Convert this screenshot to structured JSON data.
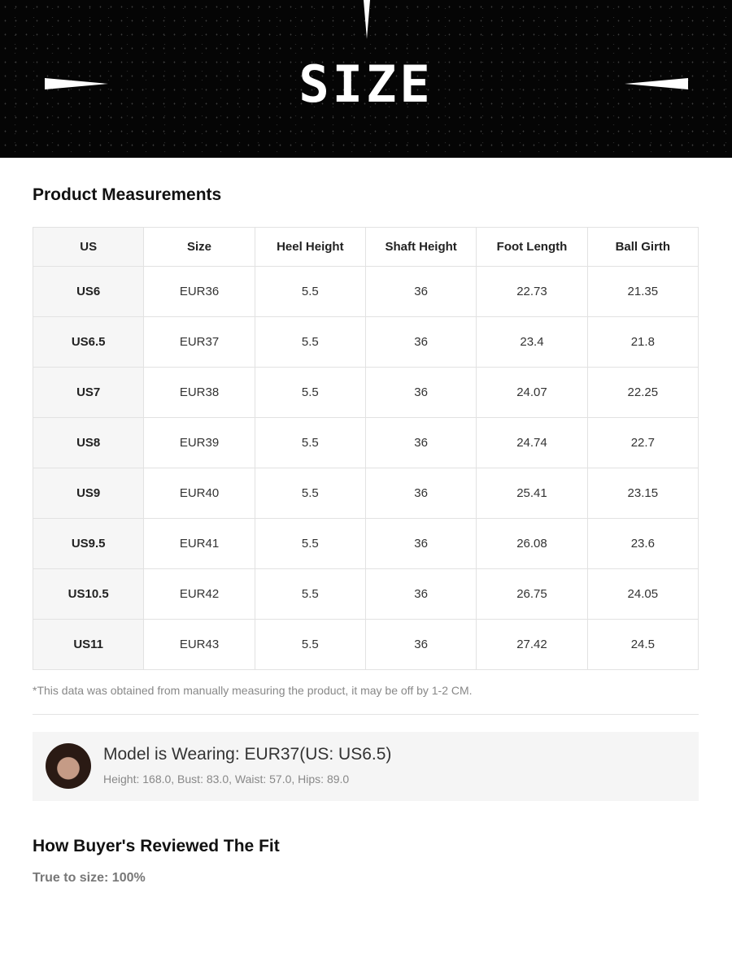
{
  "banner": {
    "title": "SIZE"
  },
  "measurements": {
    "title": "Product Measurements",
    "headers": [
      "US",
      "Size",
      "Heel Height",
      "Shaft Height",
      "Foot Length",
      "Ball Girth"
    ],
    "rows": [
      [
        "US6",
        "EUR36",
        "5.5",
        "36",
        "22.73",
        "21.35"
      ],
      [
        "US6.5",
        "EUR37",
        "5.5",
        "36",
        "23.4",
        "21.8"
      ],
      [
        "US7",
        "EUR38",
        "5.5",
        "36",
        "24.07",
        "22.25"
      ],
      [
        "US8",
        "EUR39",
        "5.5",
        "36",
        "24.74",
        "22.7"
      ],
      [
        "US9",
        "EUR40",
        "5.5",
        "36",
        "25.41",
        "23.15"
      ],
      [
        "US9.5",
        "EUR41",
        "5.5",
        "36",
        "26.08",
        "23.6"
      ],
      [
        "US10.5",
        "EUR42",
        "5.5",
        "36",
        "26.75",
        "24.05"
      ],
      [
        "US11",
        "EUR43",
        "5.5",
        "36",
        "27.42",
        "24.5"
      ]
    ],
    "note": "*This data was obtained from manually measuring the product, it may be off by 1-2 CM."
  },
  "model": {
    "title": "Model is Wearing: EUR37(US: US6.5)",
    "stats": "Height: 168.0, Bust: 83.0, Waist: 57.0, Hips: 89.0"
  },
  "fit": {
    "title": "How Buyer's Reviewed The Fit",
    "true_to_size": "True to size: 100%"
  }
}
